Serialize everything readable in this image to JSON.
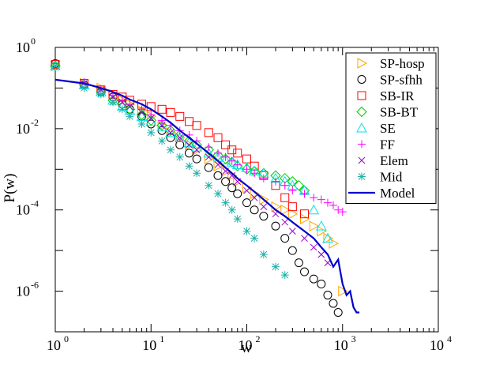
{
  "chart_data": {
    "type": "scatter",
    "title": "",
    "xlabel": "w",
    "ylabel": "P(w)",
    "xscale": "log",
    "yscale": "log",
    "xlim": [
      1,
      10000
    ],
    "ylim": [
      1e-07,
      1
    ],
    "x_ticks": [
      {
        "base": "10",
        "exp": "0"
      },
      {
        "base": "10",
        "exp": "1"
      },
      {
        "base": "10",
        "exp": "2"
      },
      {
        "base": "10",
        "exp": "3"
      },
      {
        "base": "10",
        "exp": "4"
      }
    ],
    "y_ticks": [
      {
        "base": "10",
        "exp": "0"
      },
      {
        "base": "10",
        "exp": "-2"
      },
      {
        "base": "10",
        "exp": "-4"
      },
      {
        "base": "10",
        "exp": "-6"
      }
    ],
    "legend_position": "top-right",
    "series": [
      {
        "name": "SP-hosp",
        "marker": "triangle-right",
        "color": "#ffa500",
        "x": [
          1,
          2,
          3,
          4,
          5,
          6,
          8,
          10,
          13,
          16,
          20,
          25,
          30,
          40,
          50,
          60,
          70,
          80,
          100,
          120,
          150,
          200,
          250,
          300,
          400,
          500,
          600,
          700,
          800,
          1000
        ],
        "y": [
          0.35,
          0.13,
          0.1,
          0.07,
          0.05,
          0.04,
          0.028,
          0.02,
          0.012,
          0.008,
          0.006,
          0.004,
          0.003,
          0.0018,
          0.0012,
          0.0009,
          0.0007,
          0.0005,
          0.00035,
          0.00025,
          0.00018,
          0.00012,
          0.0001,
          8e-05,
          6e-05,
          4e-05,
          3e-05,
          2e-05,
          1.5e-05,
          1e-06
        ]
      },
      {
        "name": "SP-sfhh",
        "marker": "circle",
        "color": "#000000",
        "x": [
          1,
          2,
          3,
          4,
          5,
          6,
          8,
          10,
          13,
          16,
          20,
          25,
          30,
          40,
          50,
          60,
          70,
          80,
          100,
          120,
          150,
          200,
          250,
          300,
          350,
          400,
          500,
          600,
          700,
          800,
          900
        ],
        "y": [
          0.4,
          0.12,
          0.08,
          0.06,
          0.04,
          0.03,
          0.02,
          0.013,
          0.009,
          0.006,
          0.004,
          0.0025,
          0.0018,
          0.0011,
          0.0007,
          0.0005,
          0.00035,
          0.00025,
          0.00015,
          0.0001,
          7e-05,
          4e-05,
          2e-05,
          1e-05,
          5e-06,
          3e-06,
          2e-06,
          1.5e-06,
          8e-07,
          5e-07,
          3e-07
        ]
      },
      {
        "name": "SB-IR",
        "marker": "square",
        "color": "#ff0000",
        "x": [
          1,
          2,
          3,
          4,
          5,
          6,
          8,
          10,
          13,
          16,
          20,
          25,
          30,
          40,
          50,
          60,
          70,
          80,
          100,
          120,
          150,
          200,
          250,
          300,
          400
        ],
        "y": [
          0.38,
          0.13,
          0.09,
          0.07,
          0.06,
          0.05,
          0.04,
          0.035,
          0.03,
          0.025,
          0.02,
          0.015,
          0.012,
          0.008,
          0.006,
          0.004,
          0.003,
          0.0025,
          0.0018,
          0.0012,
          0.0007,
          0.0004,
          0.0002,
          0.00012,
          8e-05
        ]
      },
      {
        "name": "SB-BT",
        "marker": "diamond",
        "color": "#00cc00",
        "x": [
          1,
          2,
          3,
          4,
          5,
          6,
          8,
          10,
          13,
          16,
          20,
          25,
          30,
          40,
          50,
          60,
          70,
          80,
          100,
          120,
          150,
          200,
          250,
          300,
          350,
          400
        ],
        "y": [
          0.35,
          0.12,
          0.08,
          0.05,
          0.04,
          0.03,
          0.022,
          0.016,
          0.012,
          0.009,
          0.007,
          0.005,
          0.004,
          0.003,
          0.0022,
          0.0018,
          0.0015,
          0.0012,
          0.001,
          0.0009,
          0.0008,
          0.0007,
          0.0006,
          0.0005,
          0.0004,
          0.0003
        ]
      },
      {
        "name": "SE",
        "marker": "triangle-up",
        "color": "#00e5ee",
        "x": [
          1,
          2,
          3,
          4,
          5,
          6,
          8,
          10,
          13,
          16,
          20,
          25,
          30,
          40,
          50,
          60,
          70,
          80,
          100,
          120,
          150,
          200,
          250,
          300,
          400,
          500,
          600,
          700
        ],
        "y": [
          0.35,
          0.12,
          0.08,
          0.05,
          0.035,
          0.028,
          0.02,
          0.015,
          0.011,
          0.008,
          0.006,
          0.0045,
          0.0035,
          0.0025,
          0.002,
          0.0017,
          0.0015,
          0.0013,
          0.0011,
          0.0009,
          0.0008,
          0.0006,
          0.0005,
          0.0004,
          0.0003,
          0.0001,
          4e-05,
          2e-05
        ]
      },
      {
        "name": "FF",
        "marker": "plus",
        "color": "#ff00ff",
        "x": [
          1,
          2,
          3,
          4,
          5,
          6,
          8,
          10,
          13,
          16,
          20,
          25,
          30,
          40,
          50,
          60,
          70,
          80,
          100,
          120,
          150,
          200,
          250,
          300,
          400,
          500,
          600,
          700,
          800,
          900,
          1000
        ],
        "y": [
          0.4,
          0.14,
          0.09,
          0.065,
          0.05,
          0.04,
          0.03,
          0.022,
          0.016,
          0.012,
          0.009,
          0.007,
          0.005,
          0.0035,
          0.0025,
          0.002,
          0.0016,
          0.0013,
          0.001,
          0.0008,
          0.0006,
          0.0005,
          0.0004,
          0.0003,
          0.00025,
          0.0002,
          0.00018,
          0.00015,
          0.00013,
          0.0001,
          9e-05
        ]
      },
      {
        "name": "Elem",
        "marker": "cross",
        "color": "#9900cc",
        "x": [
          1,
          2,
          3,
          4,
          5,
          6,
          8,
          10,
          13,
          16,
          20,
          25,
          30,
          40,
          50,
          60,
          70,
          80,
          100,
          120,
          150,
          200,
          250,
          300,
          400,
          500,
          600,
          700
        ],
        "y": [
          0.35,
          0.13,
          0.09,
          0.06,
          0.045,
          0.035,
          0.025,
          0.018,
          0.012,
          0.008,
          0.006,
          0.004,
          0.003,
          0.002,
          0.0013,
          0.0009,
          0.0007,
          0.0005,
          0.0003,
          0.0002,
          0.00012,
          8e-05,
          5e-05,
          3e-05,
          2e-05,
          1.2e-05,
          8e-06,
          5e-06
        ]
      },
      {
        "name": "Mid",
        "marker": "asterisk",
        "color": "#20b2aa",
        "x": [
          1,
          2,
          3,
          4,
          5,
          6,
          8,
          10,
          13,
          16,
          20,
          25,
          30,
          40,
          50,
          60,
          70,
          80,
          100,
          120,
          150,
          200,
          250
        ],
        "y": [
          0.35,
          0.1,
          0.07,
          0.045,
          0.03,
          0.02,
          0.013,
          0.008,
          0.005,
          0.003,
          0.002,
          0.0012,
          0.0008,
          0.0004,
          0.00025,
          0.00015,
          0.0001,
          6e-05,
          3e-05,
          2e-05,
          8e-06,
          4e-06,
          2.5e-06
        ]
      },
      {
        "name": "Model",
        "marker": "line",
        "color": "#0000cc",
        "x": [
          1,
          2,
          3,
          4,
          5,
          6,
          8,
          10,
          13,
          16,
          20,
          25,
          30,
          40,
          50,
          60,
          70,
          80,
          100,
          120,
          150,
          200,
          250,
          300,
          400,
          500,
          600,
          700,
          800,
          900,
          1000,
          1100,
          1200,
          1300,
          1400,
          1500
        ],
        "y": [
          0.16,
          0.13,
          0.1,
          0.08,
          0.065,
          0.052,
          0.04,
          0.03,
          0.02,
          0.014,
          0.009,
          0.006,
          0.0043,
          0.0025,
          0.0016,
          0.0011,
          0.0008,
          0.0006,
          0.0004,
          0.00028,
          0.00018,
          0.0001,
          7e-05,
          5e-05,
          3e-05,
          2e-05,
          1.2e-05,
          8e-06,
          4e-06,
          6e-06,
          1.5e-06,
          8e-07,
          1e-06,
          4e-07,
          3e-07,
          3e-07
        ]
      }
    ]
  }
}
